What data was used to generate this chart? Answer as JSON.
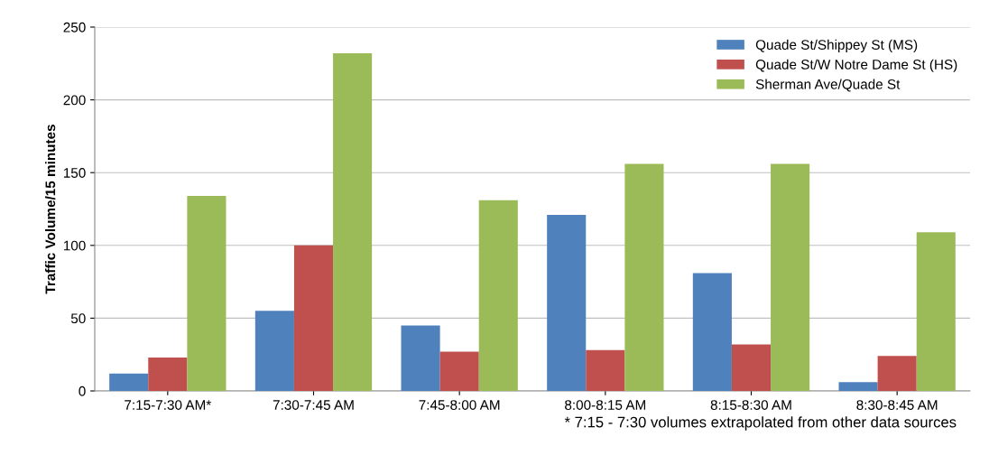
{
  "chart_data": {
    "type": "bar",
    "ylabel": "Traffic Volume/15 minutes",
    "categories": [
      "7:15-7:30 AM*",
      "7:30-7:45 AM",
      "7:45-8:00 AM",
      "8:00-8:15 AM",
      "8:15-8:30 AM",
      "8:30-8:45 AM"
    ],
    "series": [
      {
        "name": "Quade St/Shippey St (MS)",
        "color": "#4f81bd",
        "values": [
          12,
          55,
          45,
          121,
          81,
          6
        ]
      },
      {
        "name": "Quade St/W Notre Dame St (HS)",
        "color": "#c0504d",
        "values": [
          23,
          100,
          27,
          28,
          32,
          24
        ]
      },
      {
        "name": "Sherman Ave/Quade St",
        "color": "#9bbb59",
        "values": [
          134,
          232,
          131,
          156,
          156,
          109
        ]
      }
    ],
    "ylim": [
      0,
      250
    ],
    "yticks": [
      0,
      50,
      100,
      150,
      200,
      250
    ],
    "grid": "y",
    "legend": "top right",
    "annotations": [
      "* 7:15 - 7:30 volumes extrapolated from other data sources"
    ]
  }
}
